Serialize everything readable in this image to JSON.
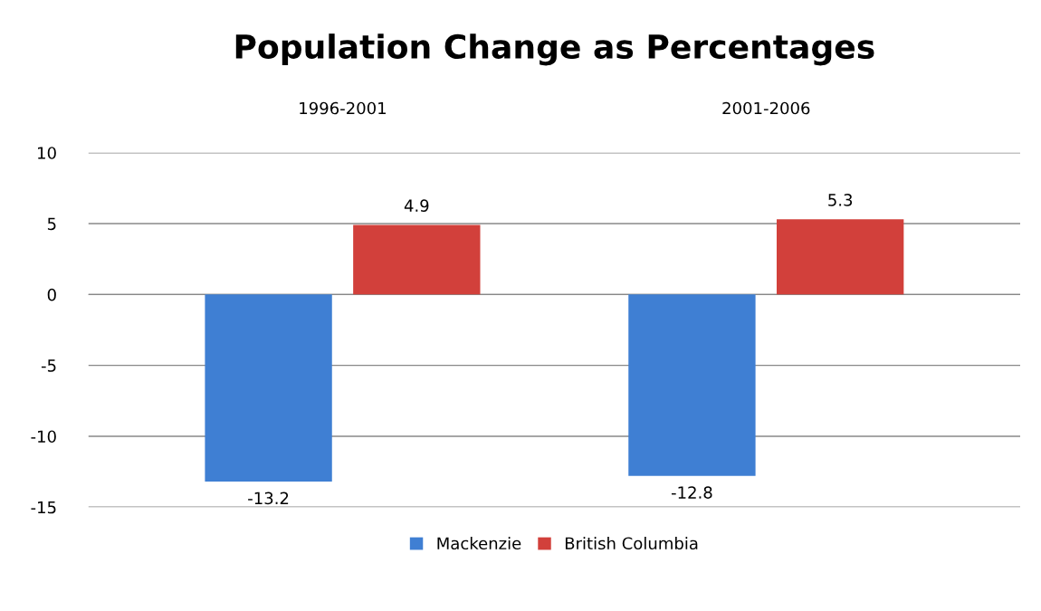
{
  "chart_data": {
    "type": "bar",
    "title": "Population Change as Percentages",
    "categories": [
      "1996-2001",
      "2001-2006"
    ],
    "series": [
      {
        "name": "Mackenzie",
        "color": "#3f7fd3",
        "values": [
          -13.2,
          -12.8
        ]
      },
      {
        "name": "British Columbia",
        "color": "#d2403b",
        "values": [
          4.9,
          5.3
        ]
      }
    ],
    "ylim": [
      -15,
      10
    ],
    "yticks": [
      -15,
      -10,
      -5,
      0,
      5,
      10
    ],
    "grid": "y",
    "legend": "bottom",
    "data_labels": true
  }
}
